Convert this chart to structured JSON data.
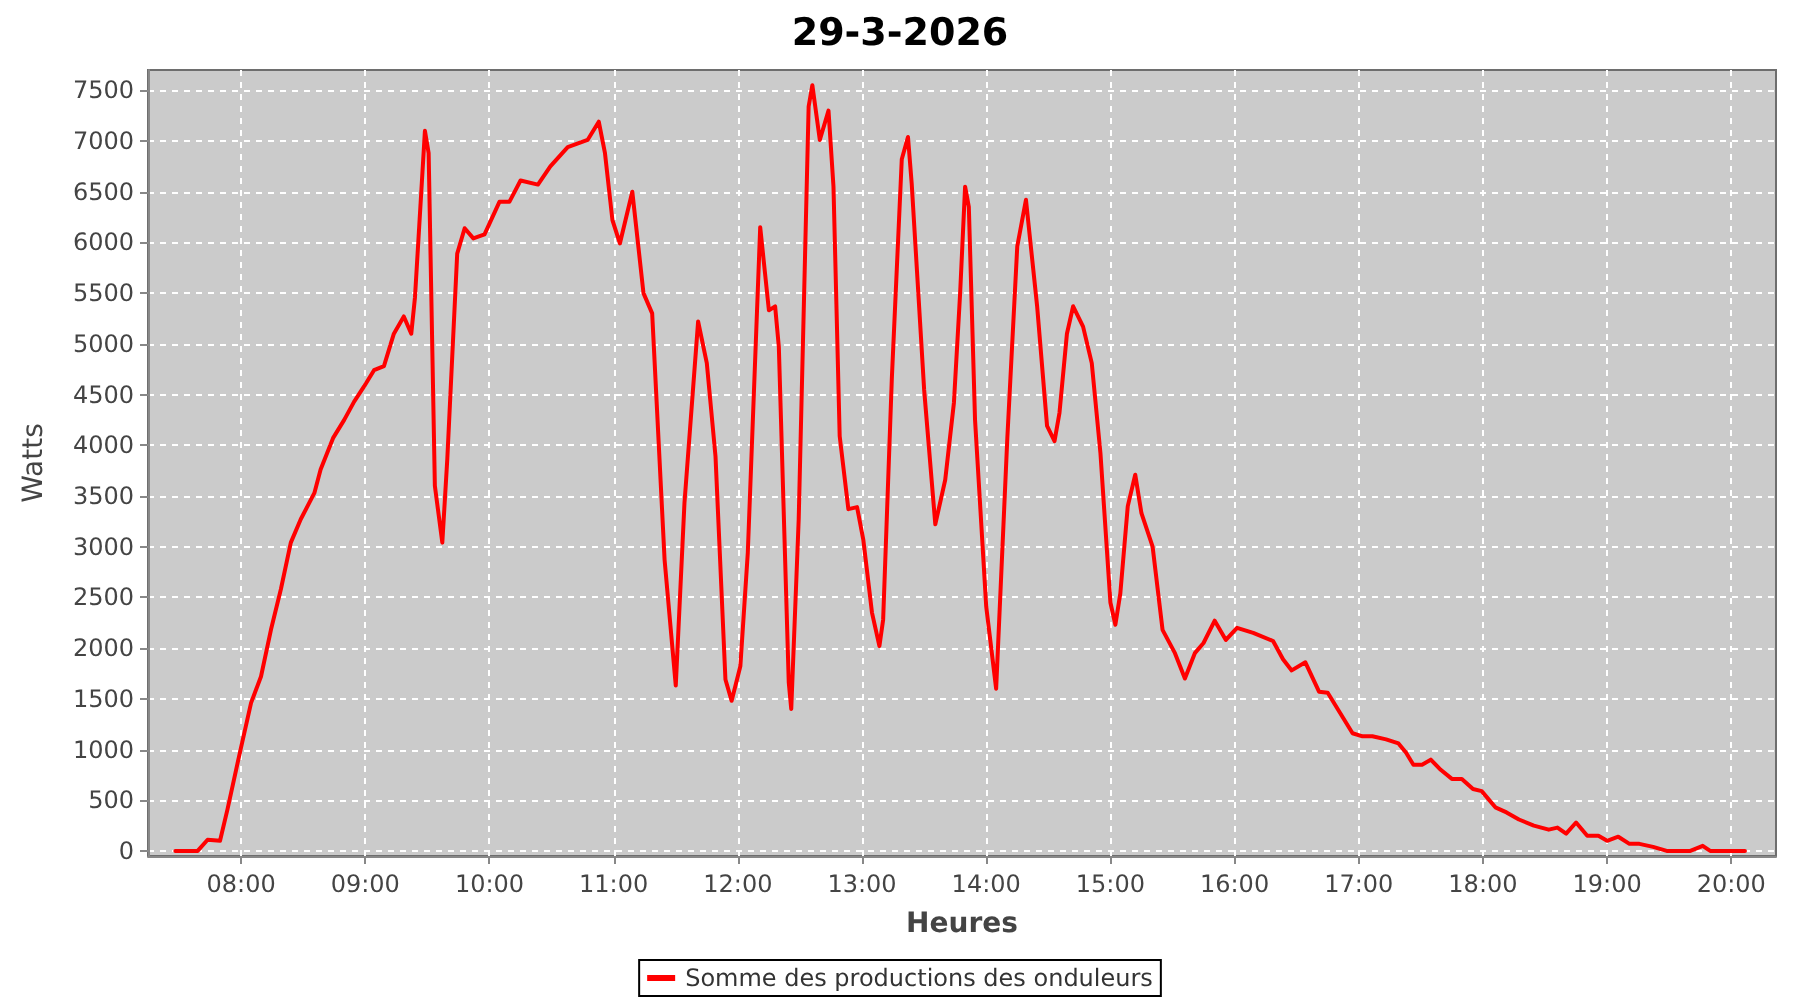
{
  "chart_data": {
    "type": "line",
    "title": "29-3-2026",
    "xlabel": "Heures",
    "ylabel": "Watts",
    "x": [
      7.47,
      7.65,
      7.73,
      7.83,
      7.89,
      7.99,
      8.08,
      8.16,
      8.24,
      8.32,
      8.4,
      8.48,
      8.59,
      8.64,
      8.74,
      8.83,
      8.91,
      8.99,
      9.07,
      9.15,
      9.23,
      9.31,
      9.37,
      9.4,
      9.48,
      9.51,
      9.56,
      9.62,
      9.66,
      9.74,
      9.8,
      9.87,
      9.96,
      10.08,
      10.16,
      10.25,
      10.39,
      10.49,
      10.63,
      10.79,
      10.88,
      10.93,
      10.99,
      11.05,
      11.15,
      11.24,
      11.31,
      11.41,
      11.5,
      11.57,
      11.68,
      11.75,
      11.82,
      11.9,
      11.95,
      12.02,
      12.08,
      12.18,
      12.25,
      12.3,
      12.33,
      12.41,
      12.43,
      12.49,
      12.57,
      12.6,
      12.66,
      12.73,
      12.77,
      12.82,
      12.89,
      12.96,
      13.01,
      13.08,
      13.14,
      13.17,
      13.24,
      13.32,
      13.37,
      13.4,
      13.5,
      13.59,
      13.67,
      13.74,
      13.79,
      13.83,
      13.86,
      13.91,
      14.0,
      14.08,
      14.17,
      14.25,
      14.32,
      14.41,
      14.49,
      14.55,
      14.59,
      14.65,
      14.7,
      14.78,
      14.85,
      14.92,
      15.0,
      15.04,
      15.08,
      15.14,
      15.2,
      15.25,
      15.34,
      15.42,
      15.52,
      15.6,
      15.68,
      15.75,
      15.84,
      15.93,
      16.02,
      16.15,
      16.31,
      16.39,
      16.46,
      16.57,
      16.68,
      16.75,
      16.85,
      16.95,
      17.03,
      17.11,
      17.22,
      17.32,
      17.38,
      17.44,
      17.51,
      17.58,
      17.66,
      17.75,
      17.83,
      17.92,
      17.99,
      18.1,
      18.19,
      18.29,
      18.41,
      18.53,
      18.6,
      18.67,
      18.75,
      18.84,
      18.93,
      19.0,
      19.09,
      19.18,
      19.26,
      19.37,
      19.48,
      19.67,
      19.77,
      19.83,
      20.11
    ],
    "series": [
      {
        "name": "Somme des productions des onduleurs",
        "color": "#ff0000",
        "values": [
          0,
          0,
          110,
          100,
          410,
          970,
          1460,
          1720,
          2180,
          2580,
          3040,
          3270,
          3530,
          3760,
          4070,
          4250,
          4430,
          4580,
          4740,
          4780,
          5100,
          5270,
          5100,
          5460,
          7100,
          6880,
          3600,
          3040,
          3860,
          5890,
          6140,
          6040,
          6080,
          6400,
          6400,
          6610,
          6570,
          6750,
          6940,
          7010,
          7190,
          6880,
          6220,
          5990,
          6500,
          5500,
          5300,
          2870,
          1630,
          3430,
          5220,
          4810,
          3890,
          1690,
          1480,
          1820,
          2940,
          6150,
          5330,
          5370,
          4970,
          1660,
          1400,
          3270,
          7340,
          7550,
          7010,
          7300,
          6550,
          4090,
          3370,
          3390,
          3070,
          2350,
          2020,
          2280,
          4660,
          6820,
          7040,
          6580,
          4550,
          3220,
          3660,
          4420,
          5500,
          6550,
          6350,
          4250,
          2410,
          1600,
          4070,
          5960,
          6420,
          5370,
          4190,
          4040,
          4320,
          5100,
          5370,
          5170,
          4810,
          3920,
          2450,
          2230,
          2540,
          3400,
          3710,
          3330,
          3000,
          2180,
          1950,
          1700,
          1950,
          2050,
          2270,
          2080,
          2200,
          2150,
          2070,
          1890,
          1780,
          1860,
          1570,
          1560,
          1360,
          1160,
          1130,
          1130,
          1100,
          1060,
          970,
          850,
          850,
          900,
          800,
          710,
          710,
          610,
          590,
          430,
          380,
          310,
          250,
          210,
          230,
          170,
          280,
          150,
          150,
          100,
          140,
          70,
          70,
          40,
          0,
          0,
          50,
          0,
          0
        ]
      }
    ],
    "xlim": [
      7.25,
      20.36
    ],
    "xticks": [
      {
        "value": 8,
        "label": "08:00"
      },
      {
        "value": 9,
        "label": "09:00"
      },
      {
        "value": 10,
        "label": "10:00"
      },
      {
        "value": 11,
        "label": "11:00"
      },
      {
        "value": 12,
        "label": "12:00"
      },
      {
        "value": 13,
        "label": "13:00"
      },
      {
        "value": 14,
        "label": "14:00"
      },
      {
        "value": 15,
        "label": "15:00"
      },
      {
        "value": 16,
        "label": "16:00"
      },
      {
        "value": 17,
        "label": "17:00"
      },
      {
        "value": 18,
        "label": "18:00"
      },
      {
        "value": 19,
        "label": "19:00"
      },
      {
        "value": 20,
        "label": "20:00"
      }
    ],
    "ylim": [
      -50,
      7700
    ],
    "yticks": [
      0,
      500,
      1000,
      1500,
      2000,
      2500,
      3000,
      3500,
      4000,
      4500,
      5000,
      5500,
      6000,
      6500,
      7000,
      7500
    ],
    "grid": true,
    "legend": "bottom"
  }
}
